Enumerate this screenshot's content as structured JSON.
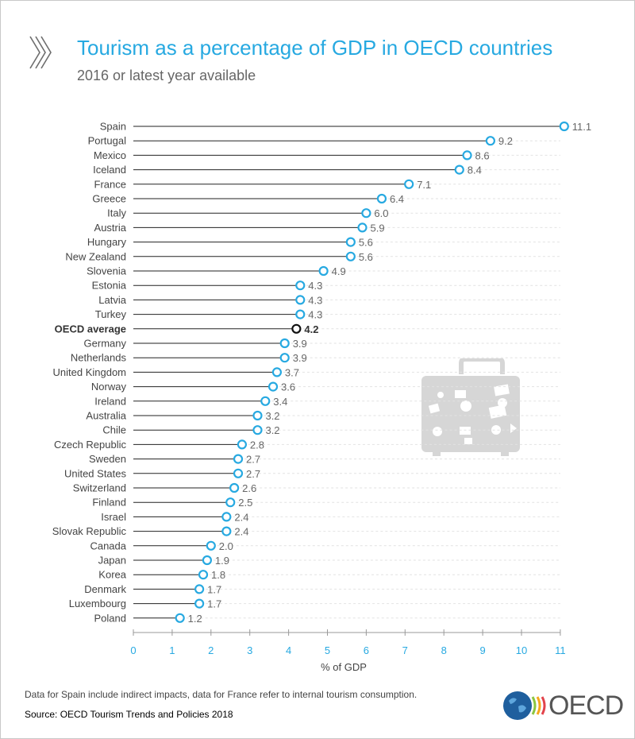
{
  "header": {
    "title": "Tourism as a percentage of GDP in OECD countries",
    "subtitle": "2016 or latest year available"
  },
  "footer": {
    "note": "Data for Spain include indirect impacts, data for France refer to internal tourism consumption.",
    "source": "Source: OECD Tourism Trends and Policies 2018",
    "logo_text": "OECD"
  },
  "colors": {
    "accent": "#27a9e1",
    "highlight": "#111111",
    "label": "#444444",
    "value": "#666666",
    "stem": "#222222",
    "grid": "#e2e2e2"
  },
  "icons": [
    "double-chevron-icon",
    "suitcase-icon",
    "oecd-globe-icon"
  ],
  "chart_data": {
    "type": "lollipop",
    "title": "Tourism as a percentage of GDP in OECD countries",
    "subtitle": "2016 or latest year available",
    "xlabel": "% of GDP",
    "xlim": [
      0,
      11
    ],
    "xticks": [
      "0",
      "1",
      "2",
      "3",
      "4",
      "5",
      "6",
      "7",
      "8",
      "9",
      "10",
      "11"
    ],
    "highlight": "OECD average",
    "categories": [
      "Spain",
      "Portugal",
      "Mexico",
      "Iceland",
      "France",
      "Greece",
      "Italy",
      "Austria",
      "Hungary",
      "New Zealand",
      "Slovenia",
      "Estonia",
      "Latvia",
      "Turkey",
      "OECD average",
      "Germany",
      "Netherlands",
      "United Kingdom",
      "Norway",
      "Ireland",
      "Australia",
      "Chile",
      "Czech Republic",
      "Sweden",
      "United States",
      "Switzerland",
      "Finland",
      "Israel",
      "Slovak Republic",
      "Canada",
      "Japan",
      "Korea",
      "Denmark",
      "Luxembourg",
      "Poland"
    ],
    "values": [
      11.1,
      9.2,
      8.6,
      8.4,
      7.1,
      6.4,
      6.0,
      5.9,
      5.6,
      5.6,
      4.9,
      4.3,
      4.3,
      4.3,
      4.2,
      3.9,
      3.9,
      3.7,
      3.6,
      3.4,
      3.2,
      3.2,
      2.8,
      2.7,
      2.7,
      2.6,
      2.5,
      2.4,
      2.4,
      2.0,
      1.9,
      1.8,
      1.7,
      1.7,
      1.2
    ],
    "labels": [
      "11.1",
      "9.2",
      "8.6",
      "8.4",
      "7.1",
      "6.4",
      "6.0",
      "5.9",
      "5.6",
      "5.6",
      "4.9",
      "4.3",
      "4.3",
      "4.3",
      "4.2",
      "3.9",
      "3.9",
      "3.7",
      "3.6",
      "3.4",
      "3.2",
      "3.2",
      "2.8",
      "2.7",
      "2.7",
      "2.6",
      "2.5",
      "2.4",
      "2.4",
      "2.0",
      "1.9",
      "1.8",
      "1.7",
      "1.7",
      "1.2"
    ]
  }
}
